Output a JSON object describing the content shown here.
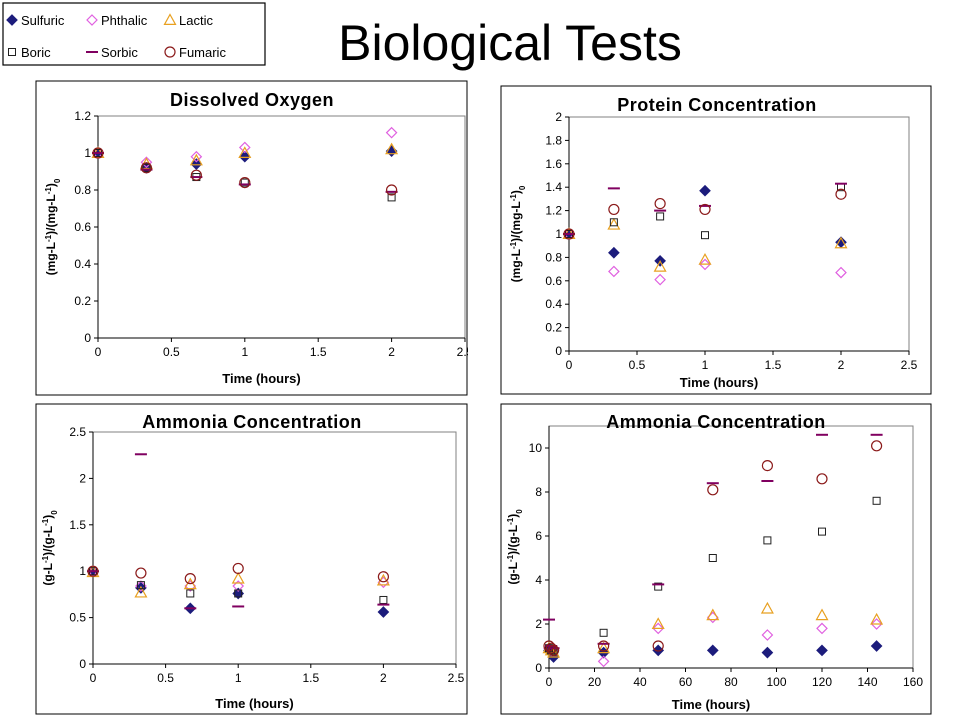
{
  "page": {
    "title": "Biological Tests"
  },
  "legend": {
    "entries": [
      {
        "name": "Sulfuric",
        "marker": "diamond-filled",
        "color": "#1c1c7c"
      },
      {
        "name": "Phthalic",
        "marker": "diamond-open",
        "color": "#e060e0"
      },
      {
        "name": "Lactic",
        "marker": "triangle-open",
        "color": "#e8a020"
      },
      {
        "name": "Boric",
        "marker": "square-open",
        "color": "#202020"
      },
      {
        "name": "Sorbic",
        "marker": "dash",
        "color": "#800060"
      },
      {
        "name": "Fumaric",
        "marker": "circle-open",
        "color": "#8b1a1a"
      }
    ]
  },
  "chart_data": [
    {
      "id": "dissolved-oxygen",
      "type": "scatter",
      "title": "Dissolved Oxygen",
      "xlabel": "Time (hours)",
      "ylabel": "(mg-L-1)/(mg-L-1)0",
      "xlim": [
        0,
        2.5
      ],
      "ylim": [
        0,
        1.2
      ],
      "xticks": [
        "0",
        "0.5",
        "1",
        "1.5",
        "2",
        "2.5"
      ],
      "yticks": [
        "0",
        "0.2",
        "0.4",
        "0.6",
        "0.8",
        "1",
        "1.2"
      ],
      "x": [
        0,
        0.33,
        0.67,
        1,
        2
      ],
      "series": [
        {
          "name": "Sulfuric",
          "values": [
            1.0,
            0.92,
            0.94,
            0.98,
            1.01
          ]
        },
        {
          "name": "Phthalic",
          "values": [
            1.0,
            0.95,
            0.98,
            1.03,
            1.11
          ]
        },
        {
          "name": "Lactic",
          "values": [
            1.0,
            0.94,
            0.96,
            1.0,
            1.02
          ]
        },
        {
          "name": "Boric",
          "values": [
            1.0,
            0.92,
            0.87,
            0.84,
            0.76
          ]
        },
        {
          "name": "Sorbic",
          "values": [
            1.0,
            0.91,
            0.87,
            0.83,
            0.79
          ]
        },
        {
          "name": "Fumaric",
          "values": [
            1.0,
            0.92,
            0.88,
            0.84,
            0.8
          ]
        }
      ]
    },
    {
      "id": "protein-concentration",
      "type": "scatter",
      "title": "Protein Concentration",
      "xlabel": "Time (hours)",
      "ylabel": "(mg-L-1)/(mg-L-1)0",
      "xlim": [
        0,
        2.5
      ],
      "ylim": [
        0,
        2
      ],
      "xticks": [
        "0",
        "0.5",
        "1",
        "1.5",
        "2",
        "2.5"
      ],
      "yticks": [
        "0",
        "0.2",
        "0.4",
        "0.6",
        "0.8",
        "1",
        "1.2",
        "1.4",
        "1.6",
        "1.8",
        "2"
      ],
      "x": [
        0,
        0.33,
        0.67,
        1,
        2
      ],
      "series": [
        {
          "name": "Sulfuric",
          "values": [
            1.0,
            0.84,
            0.77,
            1.37,
            0.93
          ]
        },
        {
          "name": "Phthalic",
          "values": [
            1.0,
            0.68,
            0.61,
            0.74,
            0.67
          ]
        },
        {
          "name": "Lactic",
          "values": [
            1.0,
            1.08,
            0.72,
            0.78,
            0.92
          ]
        },
        {
          "name": "Boric",
          "values": [
            1.0,
            1.1,
            1.15,
            0.99,
            1.4
          ]
        },
        {
          "name": "Sorbic",
          "values": [
            1.0,
            1.39,
            1.2,
            1.24,
            1.43
          ]
        },
        {
          "name": "Fumaric",
          "values": [
            1.0,
            1.21,
            1.26,
            1.21,
            1.34
          ]
        }
      ]
    },
    {
      "id": "ammonia-concentration-short",
      "type": "scatter",
      "title": "Ammonia Concentration",
      "xlabel": "Time (hours)",
      "ylabel": "(g-L-1)/(g-L-1)0",
      "xlim": [
        0,
        2.5
      ],
      "ylim": [
        0,
        2.5
      ],
      "xticks": [
        "0",
        "0.5",
        "1",
        "1.5",
        "2",
        "2.5"
      ],
      "yticks": [
        "0",
        "0.5",
        "1",
        "1.5",
        "2",
        "2.5"
      ],
      "x": [
        0,
        0.33,
        0.67,
        1,
        2
      ],
      "series": [
        {
          "name": "Sulfuric",
          "values": [
            1.0,
            0.82,
            0.6,
            0.76,
            0.56
          ]
        },
        {
          "name": "Phthalic",
          "values": [
            1.0,
            0.84,
            0.84,
            0.84,
            0.88
          ]
        },
        {
          "name": "Lactic",
          "values": [
            0.99,
            0.77,
            0.86,
            0.92,
            0.9
          ]
        },
        {
          "name": "Boric",
          "values": [
            1.0,
            0.85,
            0.76,
            0.76,
            0.69
          ]
        },
        {
          "name": "Sorbic",
          "values": [
            1.0,
            2.26,
            0.6,
            0.62,
            0.64
          ]
        },
        {
          "name": "Fumaric",
          "values": [
            1.0,
            0.98,
            0.92,
            1.03,
            0.94
          ]
        }
      ]
    },
    {
      "id": "ammonia-concentration-long",
      "type": "scatter",
      "title": "Ammonia Concentration",
      "xlabel": "Time (hours)",
      "ylabel": "(g-L-1)/(g-L-1)0",
      "xlim": [
        0,
        160
      ],
      "ylim": [
        0,
        11
      ],
      "xticks": [
        "0",
        "20",
        "40",
        "60",
        "80",
        "100",
        "120",
        "140",
        "160"
      ],
      "yticks": [
        "0",
        "2",
        "4",
        "6",
        "8",
        "10"
      ],
      "x": [
        0,
        1,
        2,
        24,
        48,
        72,
        96,
        120,
        144
      ],
      "series": [
        {
          "name": "Sulfuric",
          "values": [
            0.8,
            0.7,
            0.5,
            0.7,
            0.8,
            0.8,
            0.7,
            0.8,
            1.0
          ]
        },
        {
          "name": "Phthalic",
          "values": [
            0.9,
            0.8,
            0.8,
            0.3,
            1.8,
            2.3,
            1.5,
            1.8,
            2.0
          ]
        },
        {
          "name": "Lactic",
          "values": [
            0.9,
            0.8,
            0.7,
            0.9,
            2.0,
            2.4,
            2.7,
            2.4,
            2.2
          ]
        },
        {
          "name": "Boric",
          "values": [
            0.9,
            0.8,
            0.8,
            1.6,
            3.7,
            5.0,
            5.8,
            6.2,
            7.6
          ]
        },
        {
          "name": "Sorbic",
          "values": [
            2.2,
            1.0,
            0.9,
            1.1,
            3.8,
            8.4,
            8.5,
            10.6,
            10.6
          ]
        },
        {
          "name": "Fumaric",
          "values": [
            1.0,
            0.9,
            0.8,
            1.0,
            1.0,
            8.1,
            9.2,
            8.6,
            10.1
          ]
        }
      ]
    }
  ]
}
